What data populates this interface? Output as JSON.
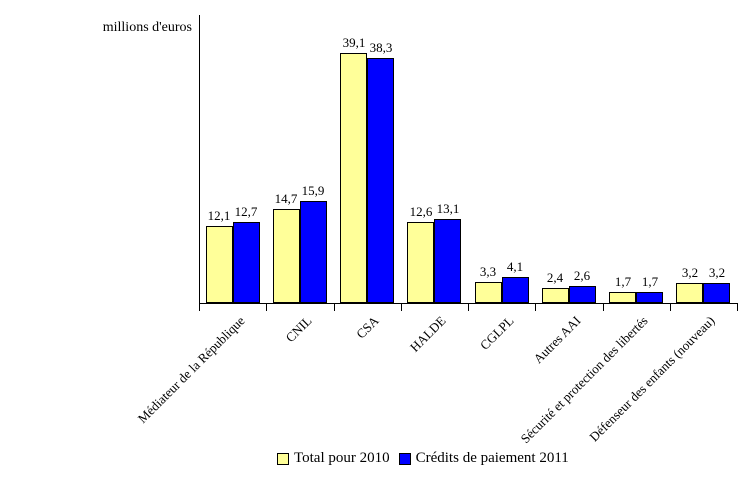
{
  "page": {
    "background": "#FFFFFF"
  },
  "chart_data": {
    "type": "bar",
    "title": "",
    "ylabel": "millions d'euros",
    "xlabel": "",
    "categories": [
      "Médiateur de la République",
      "CNIL",
      "CSA",
      "HALDE",
      "CGLPL",
      "Autres AAI",
      "Sécurité et protection des libertés",
      "Défenseur des enfants (nouveau)"
    ],
    "series": [
      {
        "name": "Total pour 2010",
        "color": "#FFFF99",
        "values": [
          12.1,
          14.7,
          39.1,
          12.6,
          3.3,
          2.4,
          1.7,
          3.2
        ]
      },
      {
        "name": "Crédits de paiement 2011",
        "color": "#0000FF",
        "values": [
          12.7,
          15.9,
          38.3,
          13.1,
          4.1,
          2.6,
          1.7,
          3.2
        ]
      }
    ],
    "value_labels": true,
    "decimal_separator": ",",
    "ylim": [
      0,
      45
    ],
    "grid": false,
    "y_tick_labels": false,
    "legend_position": "bottom",
    "bar_border_color": "#000000",
    "axis_color": "#000000"
  }
}
